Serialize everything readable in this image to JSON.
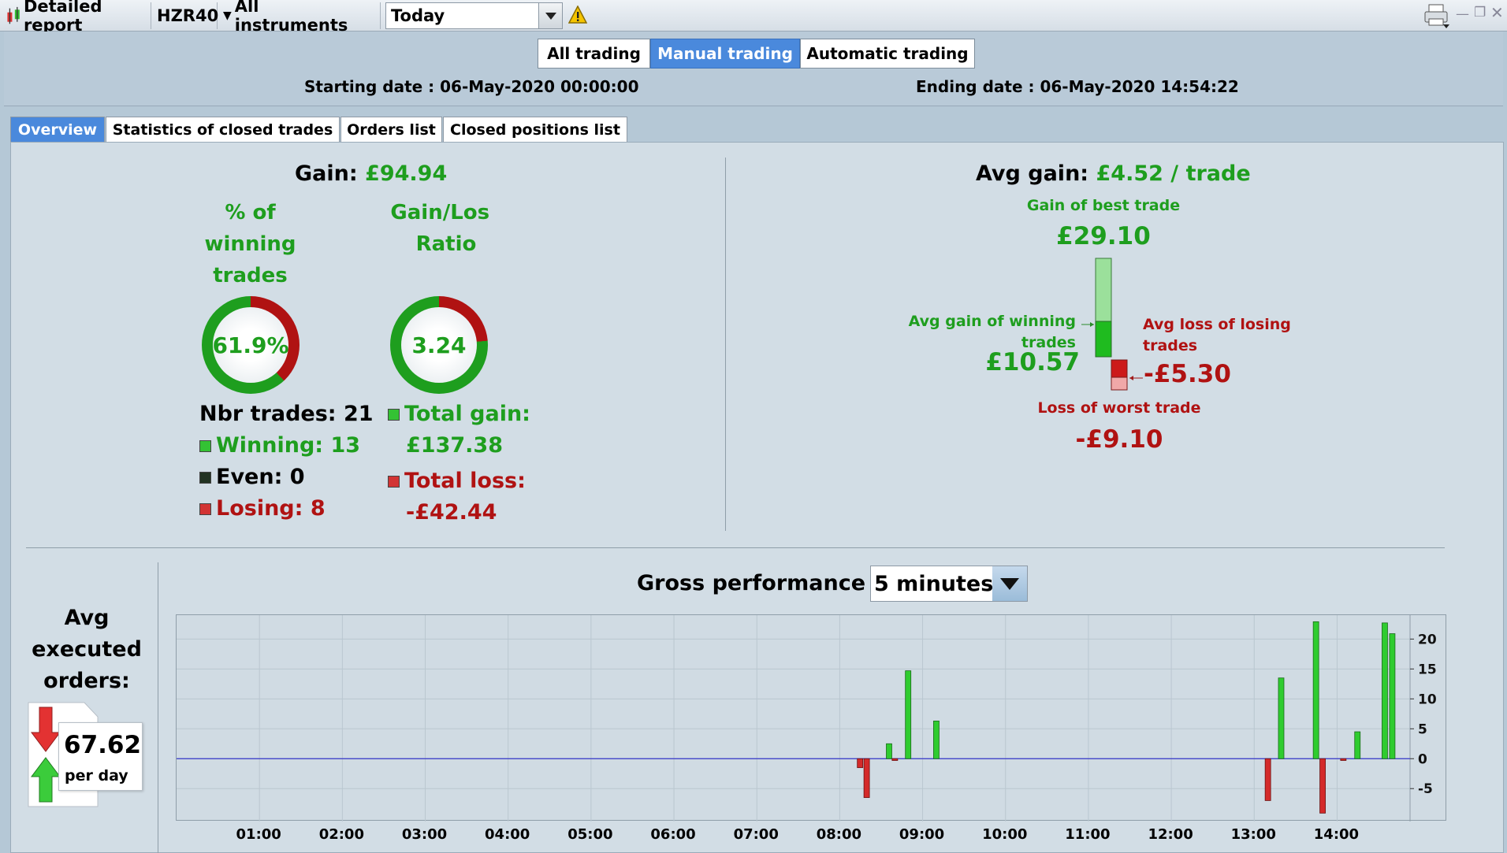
{
  "toolbar": {
    "title": "Detailed report",
    "instrument": "HZR40",
    "instruments_menu": "All instruments",
    "period_value": "Today"
  },
  "modes": [
    "All trading",
    "Manual trading",
    "Automatic trading"
  ],
  "active_mode": "Manual trading",
  "dates": {
    "start": "Starting date : 06-May-2020 00:00:00",
    "end": "Ending date : 06-May-2020 14:54:22"
  },
  "tabs": [
    "Overview",
    "Statistics of closed trades",
    "Orders list",
    "Closed positions list"
  ],
  "overview": {
    "gain_label": "Gain:",
    "gain_value": "£94.94",
    "winning_pct_title": "% of winning trades",
    "winning_pct_value": "61.9%",
    "winning_pct_fraction": 0.619,
    "ratio_title": "Gain/Loss Ratio",
    "ratio_value": "3.24",
    "ratio_fraction": 0.764,
    "nbr_trades": "Nbr trades: 21",
    "winning": "Winning: 13",
    "even": "Even: 0",
    "losing": "Losing: 8",
    "total_gain_label": "Total gain:",
    "total_gain_value": "£137.38",
    "total_loss_label": "Total loss:",
    "total_loss_value": "-£42.44",
    "avg_gain_label": "Avg gain:",
    "avg_gain_value": "£4.52 / trade",
    "best_trade_label": "Gain of best trade",
    "best_trade_value": "£29.10",
    "avg_win_label": "Avg gain of winning trades",
    "avg_win_value": "£10.57",
    "avg_loss_label": "Avg loss of losing trades",
    "avg_loss_value": "-£5.30",
    "worst_trade_label": "Loss of worst trade",
    "worst_trade_value": "-£9.10"
  },
  "orders": {
    "title": "Avg executed orders:",
    "value": "67.62",
    "unit": "per day"
  },
  "performance": {
    "title": "Gross performance",
    "interval": "5 minutes"
  },
  "colors": {
    "gain": "#1e9e1e",
    "loss": "#b01212",
    "accent": "#4a89dc"
  },
  "chart_data": {
    "type": "bar",
    "xlabel": "",
    "ylabel": "",
    "x_ticks": [
      "01:00",
      "02:00",
      "03:00",
      "04:00",
      "05:00",
      "06:00",
      "07:00",
      "08:00",
      "09:00",
      "10:00",
      "11:00",
      "12:00",
      "13:00",
      "14:00"
    ],
    "y_ticks": [
      20,
      15,
      10,
      5,
      0,
      -5
    ],
    "ylim": [
      -10.5,
      24
    ],
    "xlim_hours": [
      0.0,
      14.88
    ],
    "bars": [
      {
        "t": 8.25,
        "v": -1.5
      },
      {
        "t": 8.33,
        "v": -6.5
      },
      {
        "t": 8.6,
        "v": 2.5
      },
      {
        "t": 8.67,
        "v": -0.3
      },
      {
        "t": 8.83,
        "v": 14.7
      },
      {
        "t": 9.17,
        "v": 6.3
      },
      {
        "t": 13.17,
        "v": -7.0
      },
      {
        "t": 13.33,
        "v": 13.5
      },
      {
        "t": 13.75,
        "v": 22.9
      },
      {
        "t": 13.83,
        "v": -9.1
      },
      {
        "t": 14.08,
        "v": -0.3
      },
      {
        "t": 14.25,
        "v": 4.5
      },
      {
        "t": 14.58,
        "v": 22.7
      },
      {
        "t": 14.67,
        "v": 20.9
      }
    ],
    "grid": true
  }
}
